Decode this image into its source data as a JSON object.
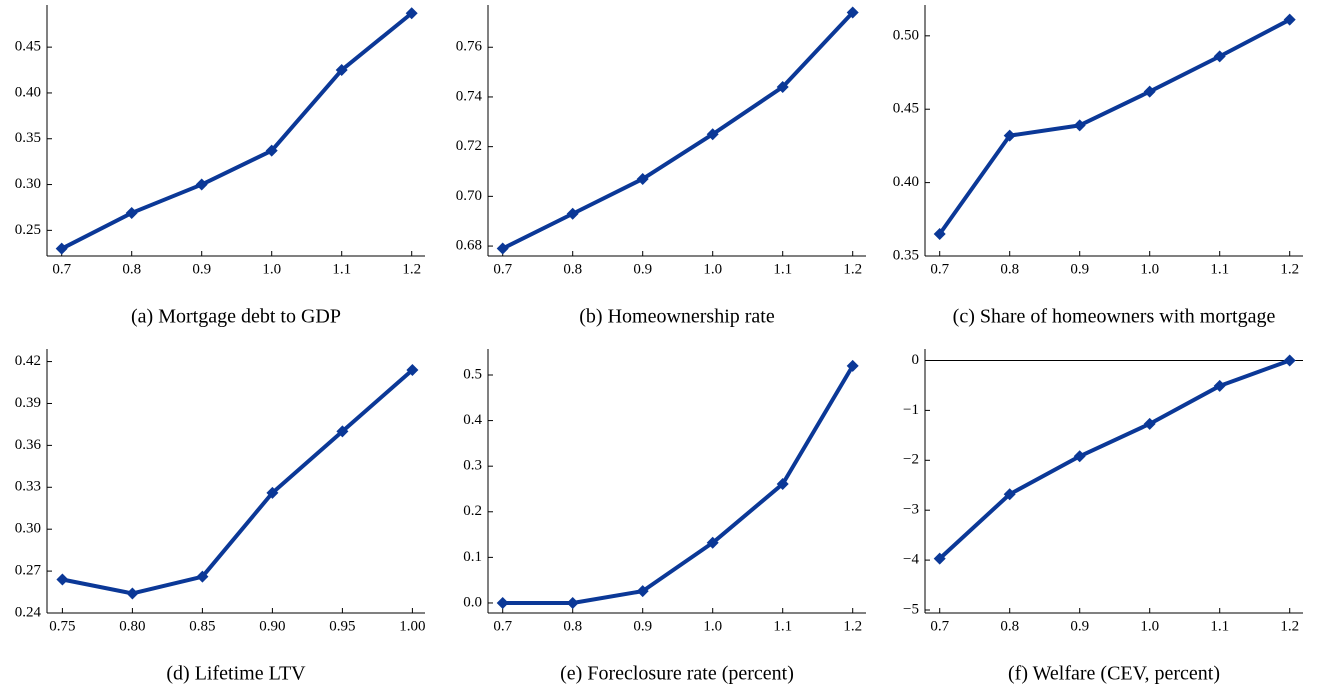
{
  "chart_data": [
    {
      "type": "line",
      "caption": "(a) Mortgage debt to GDP",
      "color": "#0b3897",
      "x": [
        0.7,
        0.8,
        0.9,
        1.0,
        1.1,
        1.2
      ],
      "values": [
        0.23,
        0.269,
        0.3,
        0.337,
        0.425,
        0.487
      ],
      "xlim": [
        0.679,
        1.219
      ],
      "ylim": [
        0.222,
        0.496
      ],
      "xticks": [
        0.7,
        0.8,
        0.9,
        {
          "value": 1.0,
          "label": "1.0"
        },
        1.1,
        1.2
      ],
      "yticks": [
        0.25,
        {
          "value": 0.3,
          "label": "0.30"
        },
        0.35,
        {
          "value": 0.4,
          "label": "0.40"
        },
        0.45
      ]
    },
    {
      "type": "line",
      "caption": "(b) Homeownership rate",
      "color": "#0b3897",
      "x": [
        0.7,
        0.8,
        0.9,
        1.0,
        1.1,
        1.2
      ],
      "values": [
        0.679,
        0.693,
        0.707,
        0.725,
        0.744,
        0.774
      ],
      "xlim": [
        0.679,
        1.219
      ],
      "ylim": [
        0.676,
        0.777
      ],
      "xticks": [
        0.7,
        0.8,
        0.9,
        {
          "value": 1.0,
          "label": "1.0"
        },
        1.1,
        1.2
      ],
      "yticks": [
        0.68,
        {
          "value": 0.7,
          "label": "0.70"
        },
        0.72,
        0.74,
        0.76
      ]
    },
    {
      "type": "line",
      "caption": "(c) Share of homeowners with mortgage",
      "color": "#0b3897",
      "x": [
        0.7,
        0.8,
        0.9,
        1.0,
        1.1,
        1.2
      ],
      "values": [
        0.365,
        0.432,
        0.439,
        0.462,
        0.486,
        0.511
      ],
      "xlim": [
        0.679,
        1.219
      ],
      "ylim": [
        0.35,
        0.521
      ],
      "xticks": [
        0.7,
        0.8,
        0.9,
        {
          "value": 1.0,
          "label": "1.0"
        },
        1.1,
        1.2
      ],
      "yticks": [
        0.35,
        {
          "value": 0.4,
          "label": "0.40"
        },
        0.45,
        {
          "value": 0.5,
          "label": "0.50"
        }
      ]
    },
    {
      "type": "line",
      "caption": "(d) Lifetime LTV",
      "color": "#0b3897",
      "x": [
        0.75,
        0.8,
        0.85,
        0.9,
        0.95,
        1.0
      ],
      "values": [
        0.264,
        0.254,
        0.266,
        0.326,
        0.37,
        0.414
      ],
      "xlim": [
        0.739,
        1.009
      ],
      "ylim": [
        0.24,
        0.429
      ],
      "xticks": [
        0.75,
        {
          "value": 0.8,
          "label": "0.80"
        },
        0.85,
        {
          "value": 0.9,
          "label": "0.90"
        },
        0.95,
        {
          "value": 1.0,
          "label": "1.00"
        }
      ],
      "yticks": [
        0.24,
        0.27,
        {
          "value": 0.3,
          "label": "0.30"
        },
        0.33,
        0.36,
        0.39,
        0.42
      ]
    },
    {
      "type": "line",
      "caption": "(e) Foreclosure rate (percent)",
      "color": "#0b3897",
      "x": [
        0.7,
        0.8,
        0.9,
        1.0,
        1.1,
        1.2
      ],
      "values": [
        0,
        0,
        0.026,
        0.132,
        0.261,
        0.52
      ],
      "xlim": [
        0.679,
        1.219
      ],
      "ylim": [
        -0.022,
        0.557
      ],
      "xticks": [
        0.7,
        0.8,
        0.9,
        {
          "value": 1.0,
          "label": "1.0"
        },
        1.1,
        1.2
      ],
      "yticks": [
        {
          "value": 0,
          "label": "0.0"
        },
        0.1,
        0.2,
        0.3,
        0.4,
        0.5
      ]
    },
    {
      "type": "line",
      "caption": "(f) Welfare (CEV, percent)",
      "color": "#0b3897",
      "zero_line": true,
      "x": [
        0.7,
        0.8,
        0.9,
        1.0,
        1.1,
        1.2
      ],
      "values": [
        -3.97,
        -2.68,
        -1.92,
        -1.27,
        -0.51,
        0
      ],
      "xlim": [
        0.679,
        1.219
      ],
      "ylim": [
        -5.06,
        0.23
      ],
      "xticks": [
        0.7,
        0.8,
        0.9,
        {
          "value": 1.0,
          "label": "1.0"
        },
        1.1,
        1.2
      ],
      "yticks": [
        {
          "value": -5,
          "label": "−5"
        },
        {
          "value": -4,
          "label": "−4"
        },
        {
          "value": -3,
          "label": "−3"
        },
        {
          "value": -2,
          "label": "−2"
        },
        {
          "value": -1,
          "label": "−1"
        },
        0
      ]
    }
  ]
}
